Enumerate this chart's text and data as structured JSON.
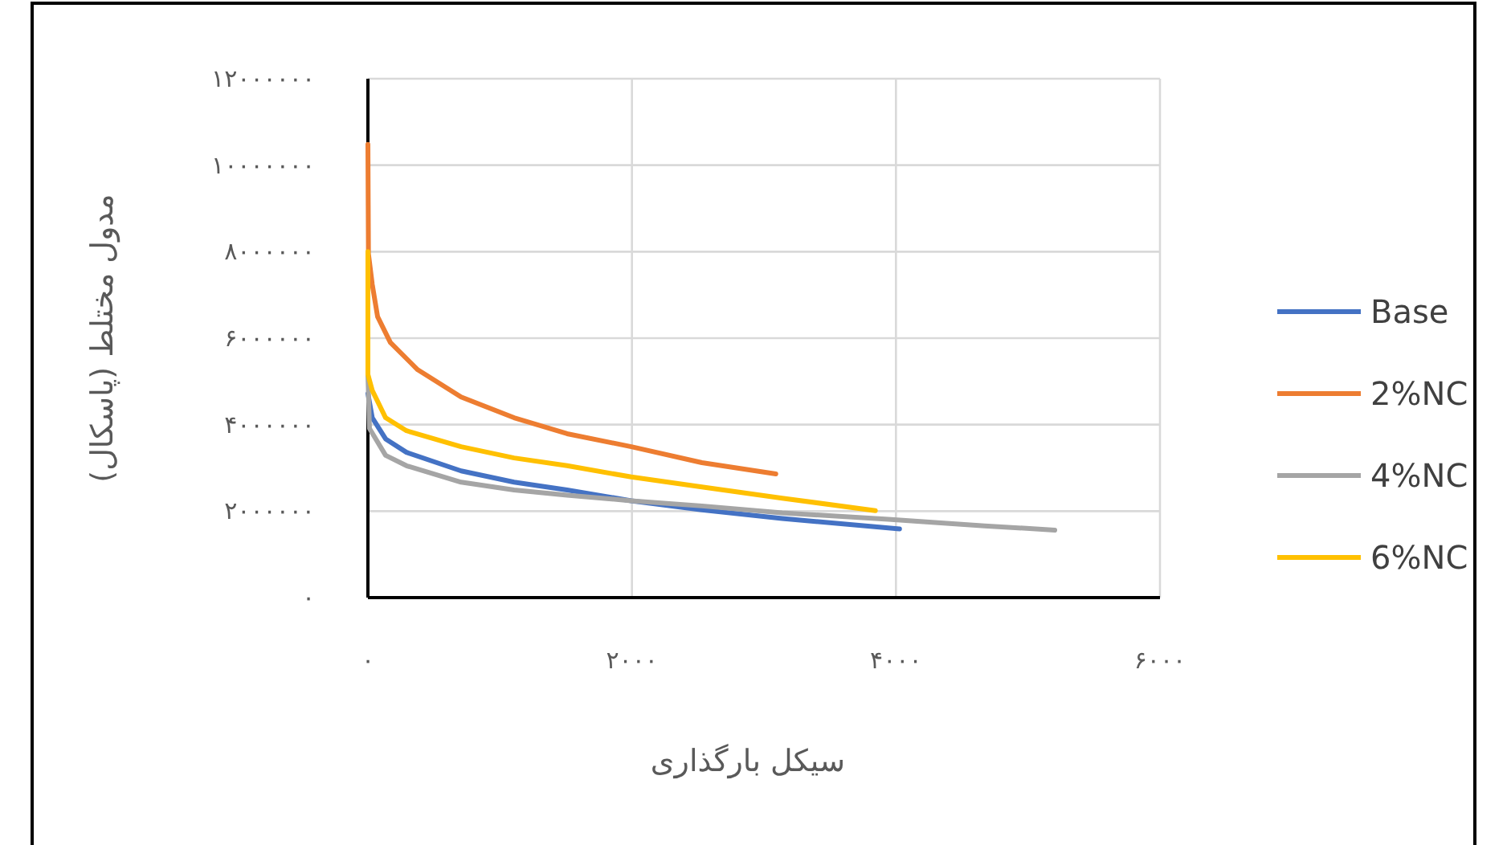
{
  "chart_data": {
    "type": "line",
    "xlabel": "سیکل بارگذاری",
    "ylabel": "مدول مختلط (پاسکال)",
    "xlim": [
      0,
      6000
    ],
    "ylim": [
      0,
      12000000
    ],
    "xticks": [
      {
        "value": 0,
        "label": "۰"
      },
      {
        "value": 2000,
        "label": "۲۰۰۰"
      },
      {
        "value": 4000,
        "label": "۴۰۰۰"
      },
      {
        "value": 6000,
        "label": "۶۰۰۰"
      }
    ],
    "yticks": [
      {
        "value": 0,
        "label": "۰"
      },
      {
        "value": 2000000,
        "label": "۲۰۰۰۰۰۰"
      },
      {
        "value": 4000000,
        "label": "۴۰۰۰۰۰۰"
      },
      {
        "value": 6000000,
        "label": "۶۰۰۰۰۰۰"
      },
      {
        "value": 8000000,
        "label": "۸۰۰۰۰۰۰"
      },
      {
        "value": 10000000,
        "label": "۱۰۰۰۰۰۰۰"
      },
      {
        "value": 12000000,
        "label": "۱۲۰۰۰۰۰۰"
      }
    ],
    "grid": true,
    "legend": "right",
    "line_style": "solid",
    "series": [
      {
        "name": "Base",
        "color": "#4472c4",
        "x": [
          0,
          33,
          134,
          292,
          706,
          1107,
          1509,
          1995,
          2530,
          3138,
          4027
        ],
        "values": [
          4720000,
          4160000,
          3670000,
          3360000,
          2930000,
          2670000,
          2490000,
          2240000,
          2030000,
          1830000,
          1590000
        ]
      },
      {
        "name": "2%NC",
        "color": "#ed7d31",
        "x": [
          0,
          4,
          33,
          73,
          170,
          377,
          706,
          1107,
          1509,
          1995,
          2530,
          3090
        ],
        "values": [
          10480000,
          7950000,
          7240000,
          6500000,
          5900000,
          5270000,
          4640000,
          4160000,
          3790000,
          3490000,
          3120000,
          2860000
        ]
      },
      {
        "name": "4%NC",
        "color": "#a5a5a5",
        "x": [
          0,
          12,
          134,
          292,
          706,
          1107,
          1509,
          1995,
          2530,
          3138,
          3942,
          4672,
          5203
        ],
        "values": [
          5160000,
          3910000,
          3290000,
          3050000,
          2670000,
          2490000,
          2370000,
          2240000,
          2120000,
          1960000,
          1810000,
          1660000,
          1560000
        ]
      },
      {
        "name": "6%NC",
        "color": "#ffc000",
        "x": [
          0,
          0,
          33,
          134,
          292,
          706,
          1107,
          1509,
          1995,
          2530,
          3138,
          3844
        ],
        "values": [
          8000000,
          5160000,
          4790000,
          4160000,
          3860000,
          3490000,
          3230000,
          3050000,
          2790000,
          2560000,
          2300000,
          2010000
        ]
      }
    ]
  }
}
